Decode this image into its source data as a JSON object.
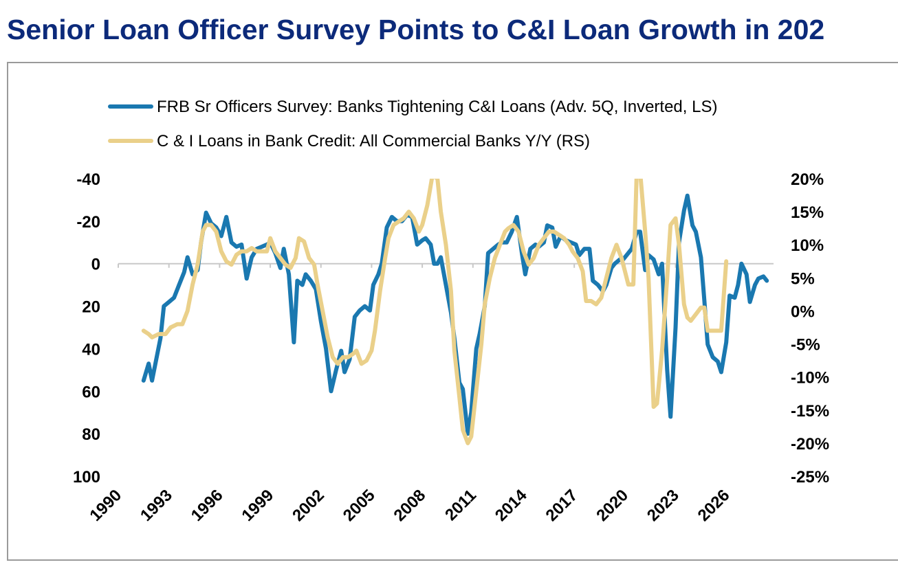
{
  "title": "Senior Loan Officer Survey Points to C&I Loan Growth in 202",
  "chart_data": {
    "type": "line",
    "legend_position": "top",
    "grid": false,
    "series": [
      {
        "name": "FRB Sr Officers Survey: Banks Tightening C&I Loans (Adv. 5Q, Inverted, LS)",
        "axis": "left",
        "color": "#1a78b0",
        "points": [
          [
            1991.5,
            55
          ],
          [
            1991.8,
            47
          ],
          [
            1992.0,
            55
          ],
          [
            1992.5,
            35
          ],
          [
            1992.7,
            20
          ],
          [
            1993.0,
            18
          ],
          [
            1993.3,
            16
          ],
          [
            1993.6,
            10
          ],
          [
            1993.9,
            4
          ],
          [
            1994.1,
            -3
          ],
          [
            1994.4,
            5
          ],
          [
            1994.7,
            3
          ],
          [
            1994.9,
            -10
          ],
          [
            1995.2,
            -24
          ],
          [
            1995.5,
            -19
          ],
          [
            1995.8,
            -17
          ],
          [
            1996.1,
            -13
          ],
          [
            1996.4,
            -22
          ],
          [
            1996.7,
            -10
          ],
          [
            1997.0,
            -8
          ],
          [
            1997.3,
            -9
          ],
          [
            1997.6,
            7
          ],
          [
            1997.9,
            -3
          ],
          [
            1998.2,
            -7
          ],
          [
            1998.5,
            -8
          ],
          [
            1998.8,
            -9
          ],
          [
            1999.0,
            -10
          ],
          [
            1999.3,
            -5
          ],
          [
            1999.6,
            2
          ],
          [
            1999.8,
            -7
          ],
          [
            2000.1,
            5
          ],
          [
            2000.4,
            37
          ],
          [
            2000.6,
            8
          ],
          [
            2000.9,
            10
          ],
          [
            2001.1,
            5
          ],
          [
            2001.4,
            8
          ],
          [
            2001.7,
            12
          ],
          [
            2002.0,
            27
          ],
          [
            2002.3,
            40
          ],
          [
            2002.6,
            60
          ],
          [
            2002.9,
            50
          ],
          [
            2003.2,
            41
          ],
          [
            2003.4,
            51
          ],
          [
            2003.7,
            45
          ],
          [
            2004.0,
            25
          ],
          [
            2004.3,
            22
          ],
          [
            2004.6,
            20
          ],
          [
            2004.9,
            22
          ],
          [
            2005.1,
            10
          ],
          [
            2005.4,
            5
          ],
          [
            2005.6,
            0
          ],
          [
            2005.9,
            -17
          ],
          [
            2006.2,
            -22
          ],
          [
            2006.5,
            -20
          ],
          [
            2006.8,
            -20
          ],
          [
            2007.1,
            -23
          ],
          [
            2007.4,
            -22
          ],
          [
            2007.7,
            -9
          ],
          [
            2008.0,
            -11
          ],
          [
            2008.2,
            -12
          ],
          [
            2008.5,
            -9
          ],
          [
            2008.7,
            0
          ],
          [
            2008.9,
            0
          ],
          [
            2009.1,
            -3
          ],
          [
            2009.4,
            10
          ],
          [
            2009.7,
            23
          ],
          [
            2009.9,
            35
          ],
          [
            2010.2,
            56
          ],
          [
            2010.4,
            59
          ],
          [
            2010.7,
            80
          ],
          [
            2010.9,
            70
          ],
          [
            2011.2,
            40
          ],
          [
            2011.4,
            33
          ],
          [
            2011.7,
            20
          ],
          [
            2011.9,
            -5
          ],
          [
            2012.2,
            -7
          ],
          [
            2012.5,
            -9
          ],
          [
            2012.7,
            -10
          ],
          [
            2013.0,
            -10
          ],
          [
            2013.3,
            -15
          ],
          [
            2013.6,
            -22
          ],
          [
            2013.9,
            -5
          ],
          [
            2014.1,
            5
          ],
          [
            2014.4,
            -7
          ],
          [
            2014.7,
            -9
          ],
          [
            2014.9,
            -8
          ],
          [
            2015.2,
            -10
          ],
          [
            2015.4,
            -18
          ],
          [
            2015.7,
            -17
          ],
          [
            2015.9,
            -8
          ],
          [
            2016.2,
            -13
          ],
          [
            2016.5,
            -11
          ],
          [
            2016.8,
            -10
          ],
          [
            2017.1,
            -9
          ],
          [
            2017.3,
            -4
          ],
          [
            2017.6,
            -7
          ],
          [
            2017.9,
            -7
          ],
          [
            2018.1,
            8
          ],
          [
            2018.4,
            10
          ],
          [
            2018.7,
            13
          ],
          [
            2018.9,
            10
          ],
          [
            2019.2,
            2
          ],
          [
            2019.4,
            0
          ],
          [
            2019.7,
            -2
          ],
          [
            2019.9,
            -2
          ],
          [
            2020.2,
            -5
          ],
          [
            2020.4,
            -7
          ],
          [
            2020.7,
            -15
          ],
          [
            2020.9,
            -15
          ],
          [
            2021.2,
            3
          ],
          [
            2021.4,
            -4
          ],
          [
            2021.7,
            -2
          ],
          [
            2022.0,
            5
          ],
          [
            2022.2,
            0
          ],
          [
            2022.5,
            50
          ],
          [
            2022.7,
            72
          ],
          [
            2023.0,
            30
          ],
          [
            2023.2,
            -10
          ],
          [
            2023.5,
            -25
          ],
          [
            2023.7,
            -32
          ],
          [
            2024.0,
            -18
          ],
          [
            2024.2,
            -15
          ],
          [
            2024.5,
            -3
          ],
          [
            2024.7,
            17
          ],
          [
            2024.9,
            38
          ],
          [
            2025.2,
            44
          ],
          [
            2025.5,
            46
          ],
          [
            2025.7,
            51
          ],
          [
            2026.0,
            37
          ],
          [
            2026.2,
            15
          ],
          [
            2026.5,
            16
          ],
          [
            2026.7,
            10
          ],
          [
            2026.9,
            0
          ],
          [
            2027.2,
            5
          ],
          [
            2027.4,
            18
          ],
          [
            2027.7,
            10
          ],
          [
            2027.9,
            7
          ],
          [
            2028.2,
            6
          ],
          [
            2028.4,
            8
          ]
        ]
      },
      {
        "name": "C & I Loans in Bank Credit: All Commercial Banks Y/Y (RS)",
        "axis": "right",
        "color": "#ead08a",
        "points": [
          [
            1991.5,
            -3
          ],
          [
            1991.8,
            -3.5
          ],
          [
            1992.0,
            -4
          ],
          [
            1992.4,
            -3.5
          ],
          [
            1992.8,
            -3.5
          ],
          [
            1993.1,
            -2.5
          ],
          [
            1993.5,
            -2
          ],
          [
            1993.8,
            -2
          ],
          [
            1994.1,
            0
          ],
          [
            1994.4,
            4
          ],
          [
            1994.7,
            7
          ],
          [
            1995.0,
            12
          ],
          [
            1995.2,
            13
          ],
          [
            1995.5,
            13
          ],
          [
            1995.8,
            12
          ],
          [
            1996.1,
            9
          ],
          [
            1996.4,
            7.5
          ],
          [
            1996.7,
            7
          ],
          [
            1997.0,
            8.5
          ],
          [
            1997.3,
            9
          ],
          [
            1997.6,
            9
          ],
          [
            1997.9,
            9.5
          ],
          [
            1998.2,
            9
          ],
          [
            1998.5,
            9
          ],
          [
            1998.8,
            9
          ],
          [
            1999.0,
            11
          ],
          [
            1999.3,
            9
          ],
          [
            1999.6,
            8
          ],
          [
            1999.9,
            7
          ],
          [
            2000.2,
            6.5
          ],
          [
            2000.5,
            8
          ],
          [
            2000.7,
            11
          ],
          [
            2001.0,
            10.5
          ],
          [
            2001.3,
            8
          ],
          [
            2001.6,
            7
          ],
          [
            2001.8,
            4
          ],
          [
            2002.1,
            0
          ],
          [
            2002.4,
            -4
          ],
          [
            2002.7,
            -7
          ],
          [
            2003.0,
            -8
          ],
          [
            2003.3,
            -7
          ],
          [
            2003.6,
            -7
          ],
          [
            2003.9,
            -6.5
          ],
          [
            2004.1,
            -6
          ],
          [
            2004.4,
            -8
          ],
          [
            2004.7,
            -7.5
          ],
          [
            2005.0,
            -6
          ],
          [
            2005.2,
            -3
          ],
          [
            2005.5,
            3
          ],
          [
            2005.8,
            8
          ],
          [
            2006.0,
            11
          ],
          [
            2006.3,
            13
          ],
          [
            2006.6,
            13.5
          ],
          [
            2006.9,
            14
          ],
          [
            2007.2,
            15
          ],
          [
            2007.5,
            14
          ],
          [
            2007.8,
            12
          ],
          [
            2008.0,
            13
          ],
          [
            2008.3,
            16
          ],
          [
            2008.6,
            20.5
          ],
          [
            2008.9,
            20
          ],
          [
            2009.1,
            15
          ],
          [
            2009.4,
            10
          ],
          [
            2009.7,
            3
          ],
          [
            2009.9,
            -6
          ],
          [
            2010.2,
            -13
          ],
          [
            2010.4,
            -18
          ],
          [
            2010.7,
            -20
          ],
          [
            2010.9,
            -19
          ],
          [
            2011.2,
            -12
          ],
          [
            2011.5,
            -5
          ],
          [
            2011.7,
            1
          ],
          [
            2012.0,
            5
          ],
          [
            2012.3,
            8
          ],
          [
            2012.6,
            10
          ],
          [
            2012.9,
            12
          ],
          [
            2013.1,
            12.5
          ],
          [
            2013.4,
            13
          ],
          [
            2013.7,
            12
          ],
          [
            2014.0,
            9
          ],
          [
            2014.3,
            7
          ],
          [
            2014.6,
            8
          ],
          [
            2014.9,
            10
          ],
          [
            2015.2,
            11
          ],
          [
            2015.5,
            12
          ],
          [
            2015.8,
            12
          ],
          [
            2016.1,
            11.5
          ],
          [
            2016.4,
            11
          ],
          [
            2016.7,
            10
          ],
          [
            2016.9,
            9
          ],
          [
            2017.2,
            8
          ],
          [
            2017.5,
            6
          ],
          [
            2017.7,
            1.5
          ],
          [
            2018.0,
            1.5
          ],
          [
            2018.3,
            1
          ],
          [
            2018.6,
            2
          ],
          [
            2018.9,
            5
          ],
          [
            2019.2,
            8
          ],
          [
            2019.5,
            10
          ],
          [
            2019.8,
            8
          ],
          [
            2020.0,
            6
          ],
          [
            2020.2,
            4
          ],
          [
            2020.5,
            4
          ],
          [
            2020.7,
            21
          ],
          [
            2020.9,
            21
          ],
          [
            2021.2,
            12
          ],
          [
            2021.4,
            5
          ],
          [
            2021.7,
            -14.5
          ],
          [
            2021.9,
            -14
          ],
          [
            2022.2,
            -6
          ],
          [
            2022.5,
            5
          ],
          [
            2022.7,
            13
          ],
          [
            2023.0,
            14
          ],
          [
            2023.2,
            10
          ],
          [
            2023.5,
            1
          ],
          [
            2023.7,
            -1
          ],
          [
            2023.9,
            -1.5
          ],
          [
            2024.2,
            -0.5
          ],
          [
            2024.5,
            0.5
          ],
          [
            2024.7,
            0.5
          ],
          [
            2024.9,
            -3
          ],
          [
            2025.2,
            -3
          ],
          [
            2025.5,
            -3
          ],
          [
            2025.7,
            -3
          ],
          [
            2026.0,
            7.5
          ]
        ]
      }
    ],
    "y_left": {
      "ticks": [
        -40,
        -20,
        0,
        20,
        40,
        60,
        80,
        100
      ],
      "tick_labels": [
        "-40",
        "-20",
        "0",
        "20",
        "40",
        "60",
        "80",
        "100"
      ],
      "range": [
        -40,
        100
      ],
      "inverted": true
    },
    "y_right": {
      "ticks": [
        20,
        15,
        10,
        5,
        0,
        -5,
        -10,
        -15,
        -20,
        -25
      ],
      "tick_labels": [
        "20%",
        "15%",
        "10%",
        "5%",
        "0%",
        "-5%",
        "-10%",
        "-15%",
        "-20%",
        "-25%"
      ],
      "range": [
        -25,
        20
      ]
    },
    "x": {
      "ticks": [
        1990,
        1993,
        1996,
        1999,
        2002,
        2005,
        2008,
        2011,
        2014,
        2017,
        2020,
        2023,
        2026
      ],
      "tick_labels": [
        "1990",
        "1993",
        "1996",
        "1999",
        "2002",
        "2005",
        "2008",
        "2011",
        "2014",
        "2017",
        "2020",
        "2023",
        "2026"
      ],
      "range": [
        1990,
        2028.8
      ]
    }
  }
}
